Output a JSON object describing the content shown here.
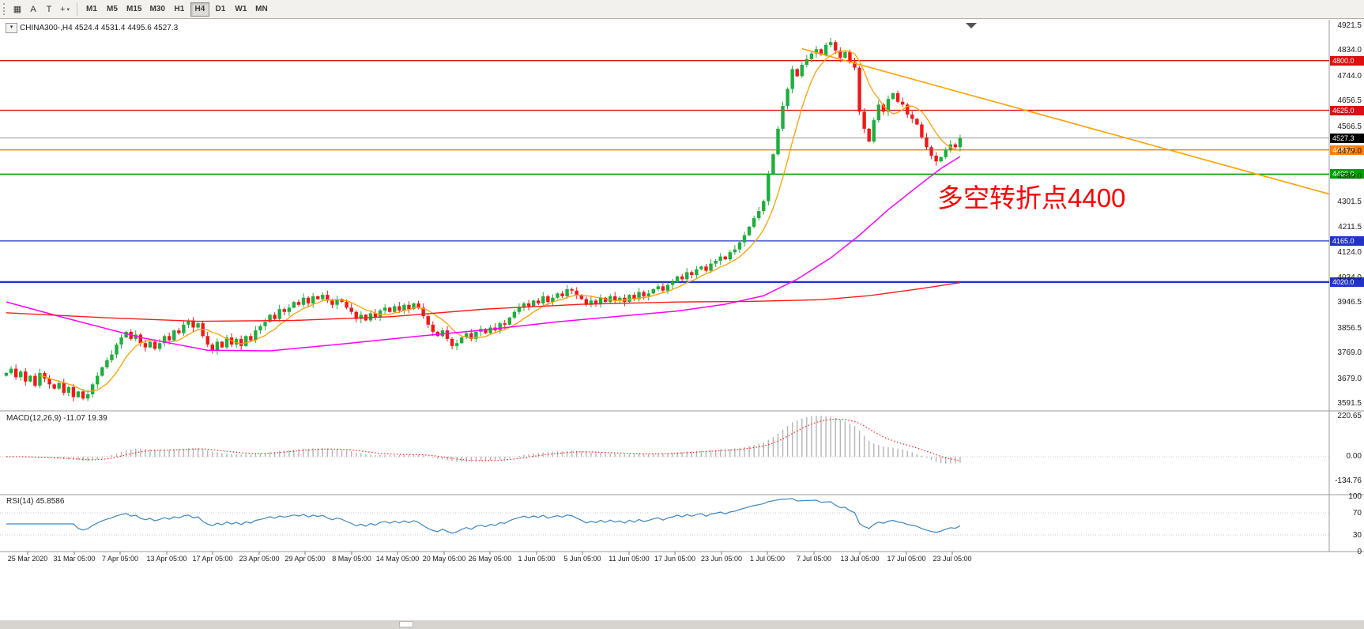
{
  "toolbar": {
    "tool_buttons": [
      {
        "name": "charts-grid-icon",
        "glyph": "▦"
      },
      {
        "name": "text-label-tool",
        "glyph": "A"
      },
      {
        "name": "text-tool",
        "glyph": "T"
      },
      {
        "name": "crosshair-tool",
        "glyph": "+",
        "caret": "▾"
      }
    ],
    "timeframes": [
      "M1",
      "M5",
      "M15",
      "M30",
      "H1",
      "H4",
      "D1",
      "W1",
      "MN"
    ],
    "active_timeframe": "H4"
  },
  "chart_header": {
    "dropdown_glyph": "▾",
    "symbol_line": "CHINA300-,H4 4524.4 4531.4 4495.6 4527.3"
  },
  "annotation": {
    "text": "多空转折点4400",
    "color": "#ff0000"
  },
  "indicators": {
    "macd_label": "MACD(12,26,9) -11.07 19.39",
    "rsi_label": "RSI(14) 45.8586"
  },
  "chart_data": {
    "type": "candlestick",
    "symbol": "CHINA300-",
    "timeframe": "H4",
    "up_color": "#1fae3d",
    "down_color": "#f01818",
    "main_ylim": [
      3569.2,
      4935.4
    ],
    "y_ticks": [
      "4921.5",
      "4834.0",
      "4744.0",
      "4656.5",
      "4566.5",
      "4479.0",
      "4389.0",
      "4301.5",
      "4211.5",
      "4124.0",
      "4034.0",
      "3946.5",
      "3856.5",
      "3769.0",
      "3679.0",
      "3591.5"
    ],
    "closes": [
      3700,
      3715,
      3685,
      3705,
      3670,
      3690,
      3655,
      3700,
      3680,
      3660,
      3645,
      3665,
      3630,
      3650,
      3615,
      3635,
      3610,
      3625,
      3660,
      3690,
      3720,
      3745,
      3765,
      3800,
      3825,
      3845,
      3820,
      3835,
      3805,
      3790,
      3810,
      3785,
      3805,
      3830,
      3815,
      3850,
      3840,
      3870,
      3885,
      3860,
      3875,
      3830,
      3800,
      3780,
      3810,
      3790,
      3825,
      3800,
      3820,
      3795,
      3830,
      3815,
      3850,
      3865,
      3880,
      3905,
      3890,
      3925,
      3915,
      3930,
      3950,
      3940,
      3965,
      3945,
      3970,
      3960,
      3975,
      3955,
      3940,
      3960,
      3950,
      3930,
      3915,
      3890,
      3905,
      3885,
      3910,
      3895,
      3920,
      3930,
      3915,
      3935,
      3920,
      3940,
      3925,
      3945,
      3930,
      3900,
      3870,
      3845,
      3830,
      3850,
      3820,
      3795,
      3805,
      3825,
      3840,
      3820,
      3845,
      3855,
      3840,
      3860,
      3850,
      3875,
      3870,
      3895,
      3915,
      3930,
      3945,
      3935,
      3955,
      3945,
      3970,
      3950,
      3965,
      3980,
      3970,
      3995,
      3990,
      3975,
      3960,
      3940,
      3955,
      3945,
      3965,
      3950,
      3970,
      3955,
      3965,
      3950,
      3975,
      3960,
      3985,
      3970,
      3980,
      3995,
      4005,
      3990,
      4010,
      4020,
      4040,
      4030,
      4055,
      4045,
      4065,
      4075,
      4060,
      4085,
      4095,
      4110,
      4100,
      4125,
      4135,
      4160,
      4185,
      4215,
      4245,
      4270,
      4305,
      4400,
      4470,
      4560,
      4640,
      4700,
      4770,
      4745,
      4785,
      4805,
      4825,
      4840,
      4820,
      4855,
      4865,
      4835,
      4810,
      4830,
      4795,
      4775,
      4620,
      4560,
      4515,
      4590,
      4645,
      4620,
      4665,
      4685,
      4655,
      4645,
      4610,
      4595,
      4575,
      4530,
      4495,
      4465,
      4445,
      4460,
      4485,
      4505,
      4495,
      4527.3
    ],
    "levels": [
      {
        "price": 4800.0,
        "label": "4800.0",
        "color": "#dd0f0f",
        "lw": 1.4
      },
      {
        "price": 4625.0,
        "label": "4625.0",
        "color": "#dd0f0f",
        "lw": 1.4
      },
      {
        "price": 4527.3,
        "label": "4527.3",
        "color": "#999999",
        "label_bg": "#000000",
        "lw": 1
      },
      {
        "price": 4485.7,
        "label": "4485.7",
        "color": "#ff7f00",
        "lw": 1.4
      },
      {
        "price": 4400.0,
        "label": "4400.0",
        "color": "#00a000",
        "lw": 1.6
      },
      {
        "price": 4165.0,
        "label": "4165.0",
        "color": "#2233cc",
        "lw": 1.2
      },
      {
        "price": 4020.0,
        "label": "4020.0",
        "color": "#2233cc",
        "lw": 2.4
      }
    ],
    "ma": {
      "fast": {
        "period": 8,
        "color": "#ffa000"
      },
      "mid": {
        "color": "#ff00ff",
        "anchors": [
          [
            0,
            3950
          ],
          [
            12,
            3895
          ],
          [
            28,
            3825
          ],
          [
            42,
            3780
          ],
          [
            55,
            3778
          ],
          [
            70,
            3802
          ],
          [
            85,
            3828
          ],
          [
            100,
            3852
          ],
          [
            115,
            3880
          ],
          [
            128,
            3900
          ],
          [
            140,
            3918
          ],
          [
            150,
            3942
          ],
          [
            158,
            3972
          ],
          [
            165,
            4030
          ],
          [
            172,
            4105
          ],
          [
            178,
            4185
          ],
          [
            184,
            4275
          ],
          [
            190,
            4355
          ],
          [
            195,
            4420
          ],
          [
            199,
            4462
          ]
        ]
      },
      "slow": {
        "color": "#ff1a1a",
        "anchors": [
          [
            0,
            3912
          ],
          [
            20,
            3895
          ],
          [
            40,
            3882
          ],
          [
            60,
            3885
          ],
          [
            80,
            3898
          ],
          [
            100,
            3925
          ],
          [
            120,
            3942
          ],
          [
            140,
            3950
          ],
          [
            155,
            3952
          ],
          [
            170,
            3958
          ],
          [
            180,
            3972
          ],
          [
            190,
            3995
          ],
          [
            199,
            4018
          ]
        ]
      }
    },
    "trendline": {
      "from_index": 166,
      "from_price": 4842,
      "to_price": 4330,
      "color": "#ffa000"
    },
    "macd": {
      "params": "12,26,9",
      "ylim": [
        -199,
        242
      ],
      "peak": 225,
      "ticks": [
        "220.65",
        "0.00",
        "-134.76"
      ],
      "hist_color": "#b4b4b4",
      "signal_color": "#ff2222"
    },
    "rsi": {
      "period": 14,
      "value": "45.8586",
      "ylim": [
        0,
        100
      ],
      "ticks": [
        "100",
        "70",
        "30",
        "0"
      ],
      "levels": [
        70,
        30
      ],
      "color": "#3d85c6"
    },
    "x_labels": [
      {
        "t": "25 Mar 2020",
        "x": 35
      },
      {
        "t": "31 Mar 05:00",
        "x": 94
      },
      {
        "t": "7 Apr 05:00",
        "x": 152
      },
      {
        "t": "13 Apr 05:00",
        "x": 211
      },
      {
        "t": "17 Apr 05:00",
        "x": 269
      },
      {
        "t": "23 Apr 05:00",
        "x": 328
      },
      {
        "t": "29 Apr 05:00",
        "x": 386
      },
      {
        "t": "8 May 05:00",
        "x": 445
      },
      {
        "t": "14 May 05:00",
        "x": 503
      },
      {
        "t": "20 May 05:00",
        "x": 562
      },
      {
        "t": "26 May 05:00",
        "x": 620
      },
      {
        "t": "1 Jun 05:00",
        "x": 679
      },
      {
        "t": "5 Jun 05:00",
        "x": 737
      },
      {
        "t": "11 Jun 05:00",
        "x": 796
      },
      {
        "t": "17 Jun 05:00",
        "x": 854
      },
      {
        "t": "23 Jun 05:00",
        "x": 913
      },
      {
        "t": "1 Jul 05:00",
        "x": 971
      },
      {
        "t": "7 Jul 05:00",
        "x": 1030
      },
      {
        "t": "13 Jul 05:00",
        "x": 1088
      },
      {
        "t": "17 Jul 05:00",
        "x": 1147
      },
      {
        "t": "23 Jul 05:00",
        "x": 1205
      }
    ]
  }
}
